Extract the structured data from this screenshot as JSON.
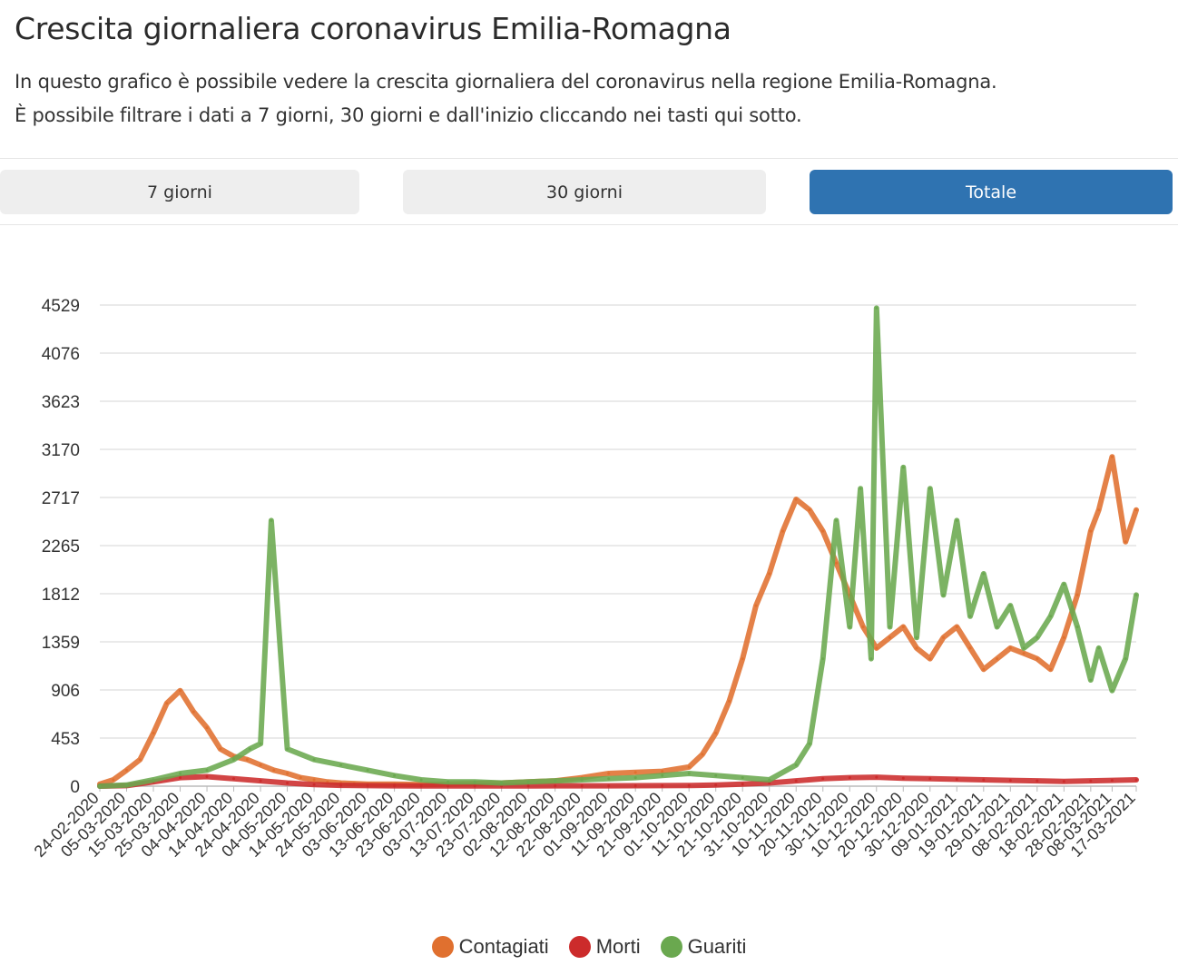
{
  "header": {
    "title": "Crescita giornaliera coronavirus Emilia-Romagna",
    "desc_line1": "In questo grafico è possibile vedere la crescita giornaliera del coronavirus nella regione Emilia-Romagna.",
    "desc_line2": "È possibile filtrare i dati a 7 giorni, 30 giorni e dall'inizio cliccando nei tasti qui sotto."
  },
  "filters": {
    "btn_7": "7 giorni",
    "btn_30": "30 giorni",
    "btn_total": "Totale",
    "active": "Totale",
    "active_color": "#2f73b1"
  },
  "chart_data": {
    "type": "line",
    "title": "",
    "xlabel": "",
    "ylabel": "",
    "y_ticks": [
      0,
      453,
      906,
      1359,
      1812,
      2265,
      2717,
      3170,
      3623,
      4076,
      4529
    ],
    "ylim": [
      0,
      4529
    ],
    "x_tick_labels": [
      "24-02-2020",
      "05-03-2020",
      "15-03-2020",
      "25-03-2020",
      "04-04-2020",
      "14-04-2020",
      "24-04-2020",
      "04-05-2020",
      "14-05-2020",
      "24-05-2020",
      "03-06-2020",
      "13-06-2020",
      "23-06-2020",
      "03-07-2020",
      "13-07-2020",
      "23-07-2020",
      "02-08-2020",
      "12-08-2020",
      "22-08-2020",
      "01-09-2020",
      "11-09-2020",
      "21-09-2020",
      "01-10-2020",
      "11-10-2020",
      "21-10-2020",
      "31-10-2020",
      "10-11-2020",
      "20-11-2020",
      "30-11-2020",
      "10-12-2020",
      "20-12-2020",
      "30-12-2020",
      "09-01-2021",
      "19-01-2021",
      "29-01-2021",
      "08-02-2021",
      "18-02-2021",
      "28-02-2021",
      "08-03-2021",
      "17-03-2021"
    ],
    "grid": true,
    "legend_position": "bottom",
    "series": [
      {
        "name": "Contagiati",
        "color": "#e0702f",
        "x": [
          "24-02-2020",
          "29-02-2020",
          "05-03-2020",
          "10-03-2020",
          "15-03-2020",
          "20-03-2020",
          "25-03-2020",
          "30-03-2020",
          "04-04-2020",
          "09-04-2020",
          "14-04-2020",
          "19-04-2020",
          "24-04-2020",
          "29-04-2020",
          "04-05-2020",
          "09-05-2020",
          "14-05-2020",
          "19-05-2020",
          "24-05-2020",
          "29-05-2020",
          "03-06-2020",
          "13-06-2020",
          "23-06-2020",
          "03-07-2020",
          "13-07-2020",
          "23-07-2020",
          "02-08-2020",
          "12-08-2020",
          "22-08-2020",
          "01-09-2020",
          "11-09-2020",
          "21-09-2020",
          "01-10-2020",
          "06-10-2020",
          "11-10-2020",
          "16-10-2020",
          "21-10-2020",
          "26-10-2020",
          "31-10-2020",
          "05-11-2020",
          "10-11-2020",
          "15-11-2020",
          "20-11-2020",
          "25-11-2020",
          "30-11-2020",
          "05-12-2020",
          "10-12-2020",
          "15-12-2020",
          "20-12-2020",
          "25-12-2020",
          "30-12-2020",
          "04-01-2021",
          "09-01-2021",
          "14-01-2021",
          "19-01-2021",
          "24-01-2021",
          "29-01-2021",
          "03-02-2021",
          "08-02-2021",
          "13-02-2021",
          "18-02-2021",
          "23-02-2021",
          "28-02-2021",
          "03-03-2021",
          "08-03-2021",
          "13-03-2021",
          "17-03-2021"
        ],
        "y": [
          20,
          60,
          150,
          250,
          500,
          780,
          900,
          700,
          550,
          350,
          280,
          250,
          200,
          150,
          120,
          80,
          60,
          40,
          30,
          25,
          20,
          20,
          15,
          20,
          25,
          30,
          40,
          50,
          80,
          120,
          130,
          140,
          180,
          300,
          500,
          800,
          1200,
          1700,
          2000,
          2400,
          2700,
          2600,
          2400,
          2100,
          1800,
          1500,
          1300,
          1400,
          1500,
          1300,
          1200,
          1400,
          1500,
          1300,
          1100,
          1200,
          1300,
          1250,
          1200,
          1100,
          1400,
          1800,
          2400,
          2600,
          3100,
          2300,
          2600
        ]
      },
      {
        "name": "Morti",
        "color": "#cc2b2b",
        "x": [
          "24-02-2020",
          "05-03-2020",
          "15-03-2020",
          "25-03-2020",
          "04-04-2020",
          "14-04-2020",
          "24-04-2020",
          "04-05-2020",
          "14-05-2020",
          "24-05-2020",
          "03-06-2020",
          "13-06-2020",
          "23-06-2020",
          "03-07-2020",
          "13-07-2020",
          "23-07-2020",
          "02-08-2020",
          "12-08-2020",
          "22-08-2020",
          "01-09-2020",
          "11-09-2020",
          "21-09-2020",
          "01-10-2020",
          "11-10-2020",
          "21-10-2020",
          "31-10-2020",
          "10-11-2020",
          "20-11-2020",
          "30-11-2020",
          "10-12-2020",
          "20-12-2020",
          "30-12-2020",
          "09-01-2021",
          "19-01-2021",
          "29-01-2021",
          "08-02-2021",
          "18-02-2021",
          "28-02-2021",
          "08-03-2021",
          "17-03-2021"
        ],
        "y": [
          0,
          5,
          40,
          80,
          90,
          70,
          50,
          30,
          15,
          8,
          5,
          3,
          2,
          2,
          2,
          2,
          2,
          3,
          3,
          3,
          4,
          5,
          6,
          10,
          20,
          30,
          50,
          70,
          80,
          85,
          75,
          70,
          65,
          60,
          55,
          50,
          45,
          50,
          55,
          60
        ]
      },
      {
        "name": "Guariti",
        "color": "#6aa84f",
        "x": [
          "24-02-2020",
          "05-03-2020",
          "15-03-2020",
          "25-03-2020",
          "04-04-2020",
          "14-04-2020",
          "20-04-2020",
          "24-04-2020",
          "28-04-2020",
          "04-05-2020",
          "14-05-2020",
          "24-05-2020",
          "03-06-2020",
          "13-06-2020",
          "23-06-2020",
          "03-07-2020",
          "13-07-2020",
          "23-07-2020",
          "02-08-2020",
          "12-08-2020",
          "22-08-2020",
          "01-09-2020",
          "11-09-2020",
          "21-09-2020",
          "01-10-2020",
          "11-10-2020",
          "21-10-2020",
          "31-10-2020",
          "10-11-2020",
          "15-11-2020",
          "20-11-2020",
          "25-11-2020",
          "30-11-2020",
          "04-12-2020",
          "08-12-2020",
          "10-12-2020",
          "15-12-2020",
          "20-12-2020",
          "25-12-2020",
          "30-12-2020",
          "04-01-2021",
          "09-01-2021",
          "14-01-2021",
          "19-01-2021",
          "24-01-2021",
          "29-01-2021",
          "03-02-2021",
          "08-02-2021",
          "13-02-2021",
          "18-02-2021",
          "23-02-2021",
          "28-02-2021",
          "03-03-2021",
          "08-03-2021",
          "13-03-2021",
          "17-03-2021"
        ],
        "y": [
          0,
          10,
          60,
          120,
          150,
          250,
          350,
          400,
          2500,
          350,
          250,
          200,
          150,
          100,
          60,
          40,
          40,
          30,
          40,
          50,
          60,
          70,
          80,
          100,
          120,
          100,
          80,
          60,
          200,
          400,
          1200,
          2500,
          1500,
          2800,
          1200,
          4500,
          1500,
          3000,
          1400,
          2800,
          1800,
          2500,
          1600,
          2000,
          1500,
          1700,
          1300,
          1400,
          1600,
          1900,
          1500,
          1000,
          1300,
          900,
          1200,
          1800
        ]
      }
    ]
  }
}
